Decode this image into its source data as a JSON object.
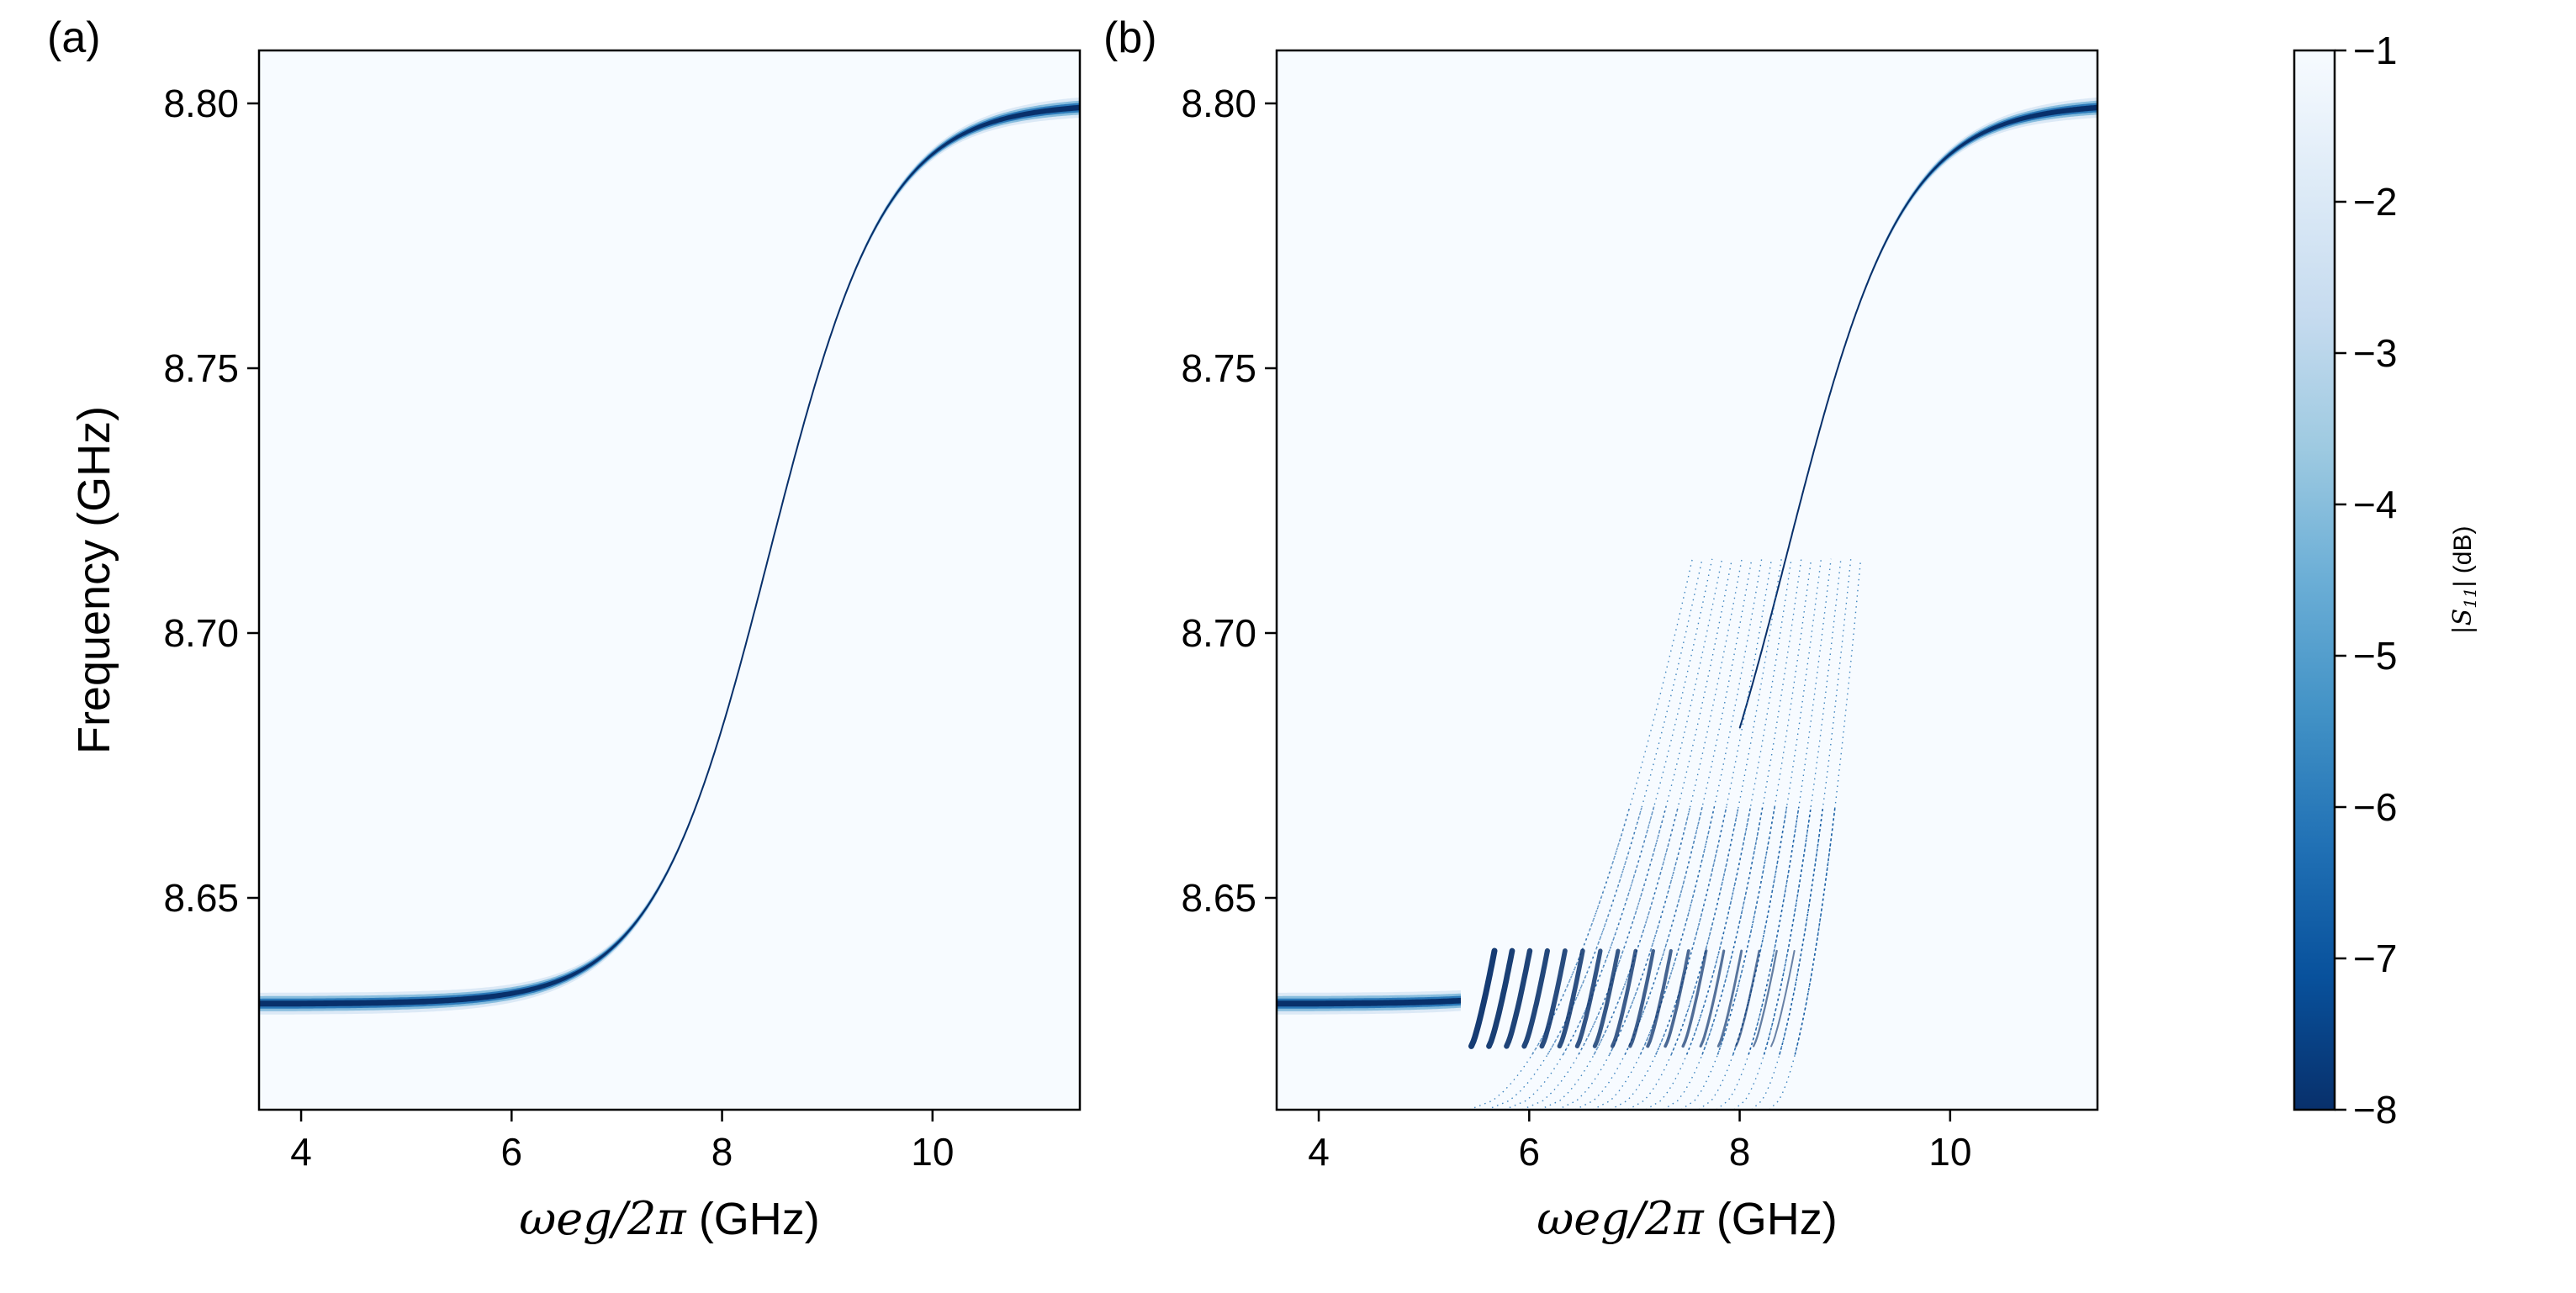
{
  "chart_data": [
    {
      "type": "heatmap",
      "panel_label": "(a)",
      "title": "",
      "xlabel_math": "ωeg/2π",
      "xlabel_sub": "eg",
      "xlabel_unit": " (GHz)",
      "ylabel": "Frequency (GHz)",
      "xlim": [
        3.6,
        11.4
      ],
      "ylim": [
        8.61,
        8.81
      ],
      "xticks": [
        4,
        6,
        8,
        10
      ],
      "yticks": [
        8.65,
        8.7,
        8.75,
        8.8
      ],
      "ytick_labels": [
        "8.65",
        "8.70",
        "8.75",
        "8.80"
      ],
      "xtick_labels": [
        "4",
        "6",
        "8",
        "10"
      ],
      "curve": {
        "center_x": 8.45,
        "low_f": 8.63,
        "high_f": 8.8,
        "width": 0.55
      },
      "description_kind": "avoided-crossing resonance"
    },
    {
      "type": "heatmap",
      "panel_label": "(b)",
      "title": "",
      "xlabel_math": "ωeg/2π",
      "xlabel_sub": "eg",
      "xlabel_unit": " (GHz)",
      "ylabel": "",
      "xlim": [
        3.6,
        11.4
      ],
      "ylim": [
        8.61,
        8.81
      ],
      "xticks": [
        4,
        6,
        8,
        10
      ],
      "yticks": [
        8.65,
        8.7,
        8.75,
        8.8
      ],
      "ytick_labels": [
        "8.65",
        "8.70",
        "8.75",
        "8.80"
      ],
      "xtick_labels": [
        "4",
        "6",
        "8",
        "10"
      ],
      "curve": {
        "center_x": 8.45,
        "low_f": 8.63,
        "high_f": 8.8,
        "width": 0.55
      },
      "upper_branch_start_x": 8.0,
      "lower_branch_end_x": 5.35,
      "fringe_count": 18,
      "fringe_x_range": [
        5.35,
        9.4
      ],
      "fringe_top_f": 8.714,
      "fringe_bottom_f": 8.61
    }
  ],
  "colorbar": {
    "label": "|S11| (dB)",
    "label_math": "|S",
    "label_sub": "11",
    "label_tail": "| (dB)",
    "range": [
      -8,
      -1
    ],
    "ticks": [
      -1,
      -2,
      -3,
      -4,
      -5,
      -6,
      -7,
      -8
    ],
    "tick_labels": [
      "−1",
      "−2",
      "−3",
      "−4",
      "−5",
      "−6",
      "−7",
      "−8"
    ],
    "colormap": "Blues",
    "color_low": "#08306b",
    "color_high": "#f7fbff"
  }
}
